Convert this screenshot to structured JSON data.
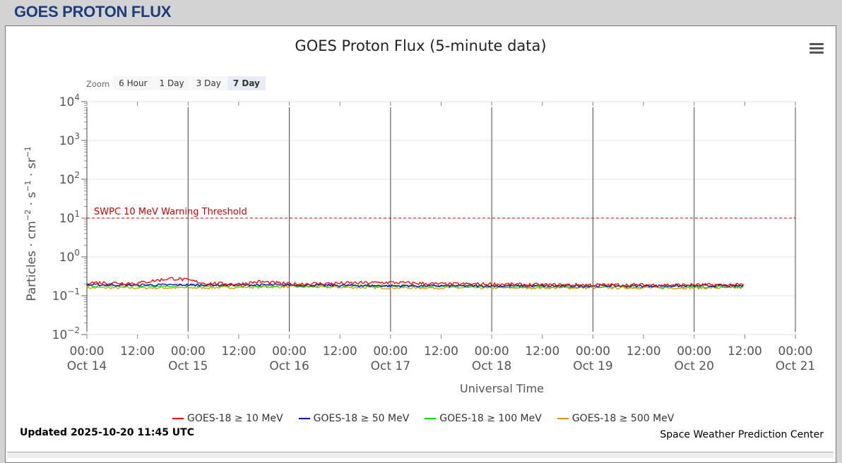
{
  "header": {
    "title": "GOES PROTON FLUX"
  },
  "menu": {
    "icon": "hamburger-menu-icon"
  },
  "zoom": {
    "label": "Zoom",
    "buttons": [
      "6 Hour",
      "1 Day",
      "3 Day",
      "7 Day"
    ],
    "active": "7 Day"
  },
  "footer": {
    "updated": "Updated 2025-10-20 11:45 UTC",
    "credit": "Space Weather Prediction Center"
  },
  "chart_data": {
    "type": "line",
    "title": "GOES Proton Flux (5-minute data)",
    "xlabel": "Universal Time",
    "ylabel": "Particles · cm⁻² · s⁻¹ · sr⁻¹",
    "yscale": "log",
    "ylim_exponents": [
      -2,
      4
    ],
    "ytick_exponents": [
      4,
      3,
      2,
      1,
      0,
      -1,
      -2
    ],
    "x_range": [
      "2025-10-14 00:00",
      "2025-10-21 00:00"
    ],
    "x_ticks": [
      [
        "00:00",
        "Oct 14"
      ],
      [
        "12:00",
        ""
      ],
      [
        "00:00",
        "Oct 15"
      ],
      [
        "12:00",
        ""
      ],
      [
        "00:00",
        "Oct 16"
      ],
      [
        "12:00",
        ""
      ],
      [
        "00:00",
        "Oct 17"
      ],
      [
        "12:00",
        ""
      ],
      [
        "00:00",
        "Oct 18"
      ],
      [
        "12:00",
        ""
      ],
      [
        "00:00",
        "Oct 19"
      ],
      [
        "12:00",
        ""
      ],
      [
        "00:00",
        "Oct 20"
      ],
      [
        "12:00",
        ""
      ],
      [
        "00:00",
        "Oct 21"
      ]
    ],
    "threshold": {
      "label": "SWPC 10 MeV Warning Threshold",
      "value": 10,
      "color": "#cc0000"
    },
    "series": [
      {
        "name": "GOES-18 ≥ 10 MeV",
        "color": "#ff0000",
        "x": [
          "10-14 00:00",
          "10-14 12:00",
          "10-14 20:00",
          "10-14 22:00",
          "10-15 04:00",
          "10-15 12:00",
          "10-15 17:00",
          "10-16 00:00",
          "10-16 12:00",
          "10-17 00:00",
          "10-17 12:00",
          "10-18 00:00",
          "10-18 12:00",
          "10-19 00:00",
          "10-19 12:00",
          "10-20 00:00",
          "10-20 11:45"
        ],
        "y": [
          0.22,
          0.21,
          0.28,
          0.27,
          0.21,
          0.2,
          0.23,
          0.2,
          0.21,
          0.22,
          0.2,
          0.2,
          0.19,
          0.19,
          0.19,
          0.19,
          0.19
        ]
      },
      {
        "name": "GOES-18 ≥ 50 MeV",
        "color": "#0000cc",
        "x": [
          "10-14 00:00",
          "10-15 00:00",
          "10-16 00:00",
          "10-17 00:00",
          "10-18 00:00",
          "10-19 00:00",
          "10-20 00:00",
          "10-20 11:45"
        ],
        "y": [
          0.19,
          0.19,
          0.19,
          0.18,
          0.18,
          0.18,
          0.18,
          0.18
        ]
      },
      {
        "name": "GOES-18 ≥ 100 MeV",
        "color": "#00dd00",
        "x": [
          "10-14 00:00",
          "10-15 00:00",
          "10-16 00:00",
          "10-17 00:00",
          "10-18 00:00",
          "10-19 00:00",
          "10-20 00:00",
          "10-20 11:45"
        ],
        "y": [
          0.18,
          0.18,
          0.18,
          0.18,
          0.17,
          0.17,
          0.17,
          0.17
        ]
      },
      {
        "name": "GOES-18 ≥ 500 MeV",
        "color": "#e69500",
        "x": [
          "10-14 00:00",
          "10-15 00:00",
          "10-16 00:00",
          "10-17 00:00",
          "10-18 00:00",
          "10-19 00:00",
          "10-20 00:00",
          "10-20 11:45"
        ],
        "y": [
          0.16,
          0.16,
          0.17,
          0.16,
          0.16,
          0.16,
          0.16,
          0.16
        ]
      }
    ]
  }
}
